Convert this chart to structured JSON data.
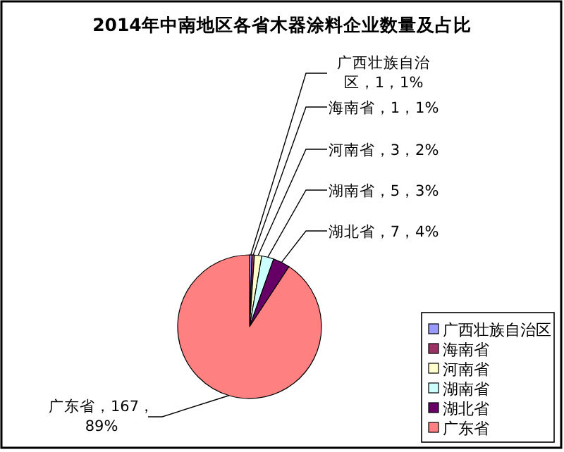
{
  "chart_data": {
    "type": "pie",
    "title": "2014年中南地区各省木器涂料企业数量及占比",
    "categories": [
      "广西壮族自治区",
      "海南省",
      "河南省",
      "湖南省",
      "湖北省",
      "广东省"
    ],
    "values": [
      1,
      1,
      3,
      5,
      7,
      167
    ],
    "value_labels": [
      "广西壮族自治区，1，1%",
      "海南省，1，1%",
      "河南省，3，2%",
      "湖南省，5，3%",
      "湖北省，7，4%",
      "广东省，167，89%"
    ],
    "colors": [
      "#9999ff",
      "#993366",
      "#ffffcc",
      "#ccffff",
      "#660066",
      "#ff8080"
    ],
    "legend": "bottom right"
  }
}
